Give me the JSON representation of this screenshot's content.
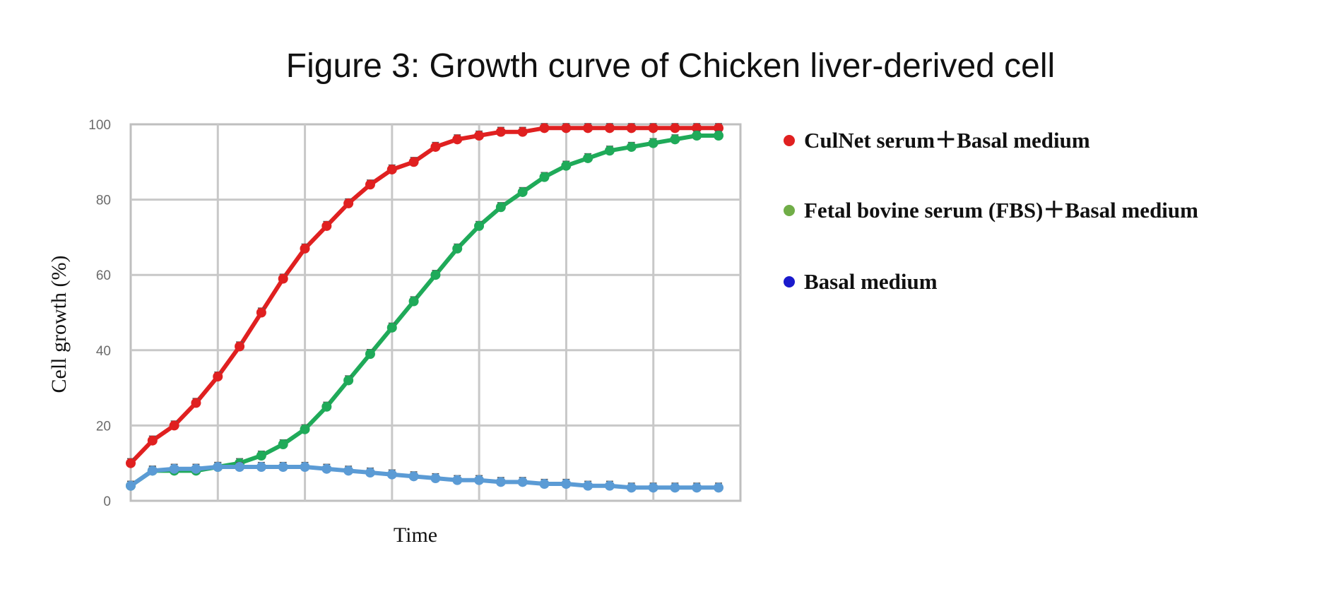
{
  "chart_data": {
    "type": "line",
    "title": "Figure 3: Growth curve of Chicken liver-derived cell",
    "xlabel": "Time",
    "ylabel": "Cell growth (%)",
    "ylim": [
      0,
      100
    ],
    "yticks": [
      "0",
      "20",
      "40",
      "60",
      "80",
      "100"
    ],
    "grid": true,
    "error_bars": true,
    "legend_position": "right",
    "x": [
      1,
      2,
      3,
      4,
      5,
      6,
      7,
      8,
      9,
      10,
      11,
      12,
      13,
      14,
      15,
      16,
      17,
      18,
      19,
      20,
      21,
      22,
      23,
      24,
      25,
      26,
      27,
      28
    ],
    "series": [
      {
        "name": "CulNet serum＋Basal medium",
        "color": "#e02020",
        "legend_color": "#e02020",
        "values": [
          10,
          16,
          20,
          26,
          33,
          41,
          50,
          59,
          67,
          73,
          79,
          84,
          88,
          90,
          94,
          96,
          97,
          98,
          98,
          99,
          99,
          99,
          99,
          99,
          99,
          99,
          99,
          99
        ]
      },
      {
        "name": "Fetal bovine serum (FBS)＋Basal medium",
        "color": "#1faa59",
        "legend_color": "#70ad47",
        "values": [
          4,
          8,
          8,
          8,
          9,
          10,
          12,
          15,
          19,
          25,
          32,
          39,
          46,
          53,
          60,
          67,
          73,
          78,
          82,
          86,
          89,
          91,
          93,
          94,
          95,
          96,
          97,
          97
        ]
      },
      {
        "name": "Basal medium",
        "color": "#5b9bd5",
        "legend_color": "#1a1acc",
        "values": [
          4,
          8,
          8.5,
          8.5,
          9,
          9,
          9,
          9,
          9,
          8.5,
          8,
          7.5,
          7,
          6.5,
          6,
          5.5,
          5.5,
          5,
          5,
          4.5,
          4.5,
          4,
          4,
          3.5,
          3.5,
          3.5,
          3.5,
          3.5
        ]
      }
    ]
  }
}
